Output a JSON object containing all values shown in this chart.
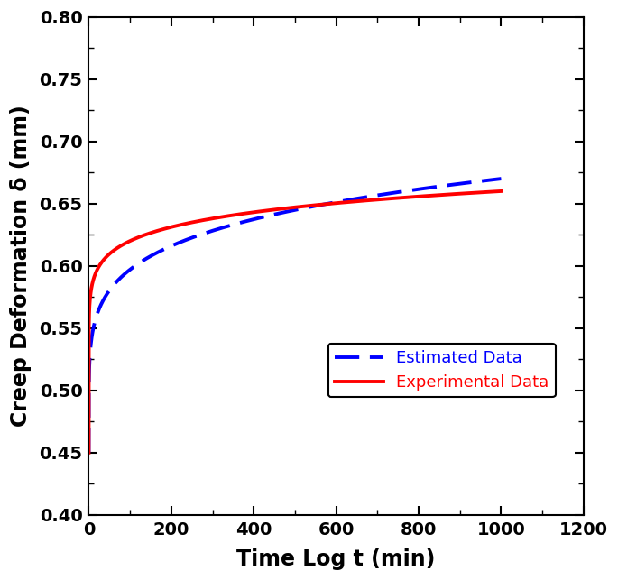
{
  "xlabel": "Time Log t (min)",
  "ylabel": "Creep Deformation δ (mm)",
  "xlim": [
    0,
    1200
  ],
  "ylim": [
    0.4,
    0.8
  ],
  "xticks": [
    0,
    200,
    400,
    600,
    800,
    1000,
    1200
  ],
  "yticks": [
    0.4,
    0.45,
    0.5,
    0.55,
    0.6,
    0.65,
    0.7,
    0.75,
    0.8
  ],
  "estimated_color": "#0000FF",
  "experimental_color": "#FF0000",
  "estimated_label": "Estimated Data",
  "experimental_label": "Experimental Data",
  "line_width": 2.8,
  "legend_fontsize": 13,
  "axis_label_fontsize": 17,
  "tick_fontsize": 14,
  "background_color": "#FFFFFF",
  "est_a": 0.45,
  "est_b": 0.218,
  "est_k": 0.018,
  "exp_a": 0.45,
  "exp_b": 0.21,
  "exp_k": 0.055
}
